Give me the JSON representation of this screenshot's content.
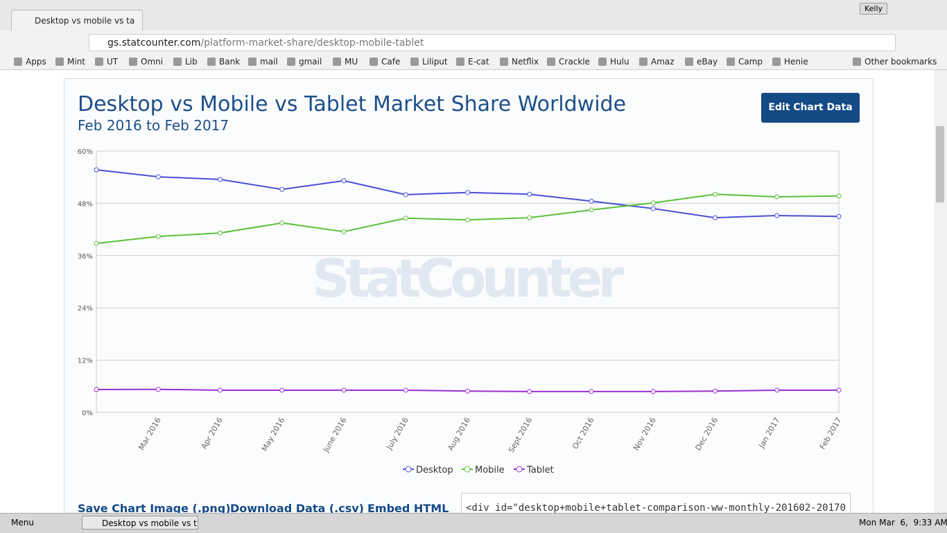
{
  "browser": {
    "tab_title": "Desktop vs mobile vs ta",
    "user": "Kelly",
    "url_host": "gs.statcounter.com",
    "url_path": "/platform-market-share/desktop-mobile-tablet",
    "bookmarks": [
      "Apps",
      "Mint",
      "UT",
      "Omni",
      "Lib",
      "Bank",
      "mail",
      "gmail",
      "MU",
      "Cafe",
      "Liliput",
      "E-cat",
      "Netflix",
      "Crackle",
      "Hulu",
      "Amaz",
      "eBay",
      "Camp",
      "Henie"
    ],
    "other_bookmarks": "Other bookmarks"
  },
  "page": {
    "edit_button": "Edit Chart Data",
    "links": [
      "Save Chart Image (.png)",
      "Download Data (.csv)",
      "Embed HTML"
    ],
    "embed_code": "<div id=\"desktop+mobile+tablet-comparison-ww-monthly-201602-20170",
    "watermark": "StatCounter"
  },
  "chart_data": {
    "type": "line",
    "title": "Desktop vs Mobile vs Tablet Market Share Worldwide",
    "subtitle": "Feb 2016 to Feb 2017",
    "categories": [
      null,
      "Mar 2016",
      "Apr 2016",
      "May 2016",
      "June 2016",
      "July 2016",
      "Aug 2016",
      "Sept 2016",
      "Oct 2016",
      "Nov 2016",
      "Dec 2016",
      "Jan 2017",
      "Feb 2017"
    ],
    "series": [
      {
        "name": "Desktop",
        "color": "#4a4fd6",
        "values": [
          55.7,
          54.1,
          53.5,
          51.2,
          53.2,
          50.0,
          50.5,
          50.1,
          48.5,
          46.8,
          44.7,
          45.2,
          45.0
        ]
      },
      {
        "name": "Mobile",
        "color": "#5bbf3a",
        "values": [
          38.8,
          40.4,
          41.2,
          43.5,
          41.5,
          44.6,
          44.2,
          44.7,
          46.5,
          48.1,
          50.1,
          49.5,
          49.7
        ]
      },
      {
        "name": "Tablet",
        "color": "#9b30d0",
        "values": [
          5.25,
          5.3,
          5.1,
          5.1,
          5.1,
          5.1,
          4.9,
          4.8,
          4.8,
          4.8,
          4.9,
          5.1,
          5.1
        ]
      }
    ],
    "ylim": [
      0,
      60
    ],
    "yticks": [
      {
        "value": 0,
        "label": "0%"
      },
      {
        "value": 12,
        "label": "12%"
      },
      {
        "value": 24,
        "label": "24%"
      },
      {
        "value": 36,
        "label": "36%"
      },
      {
        "value": 48,
        "label": "48%"
      },
      {
        "value": 60,
        "label": "60%"
      }
    ],
    "grid": true,
    "legend": "bottom"
  },
  "taskbar": {
    "menu": "Menu",
    "window": "Desktop vs mobile vs t...",
    "clock": "Mon Mar  6,  9:33 AM"
  }
}
